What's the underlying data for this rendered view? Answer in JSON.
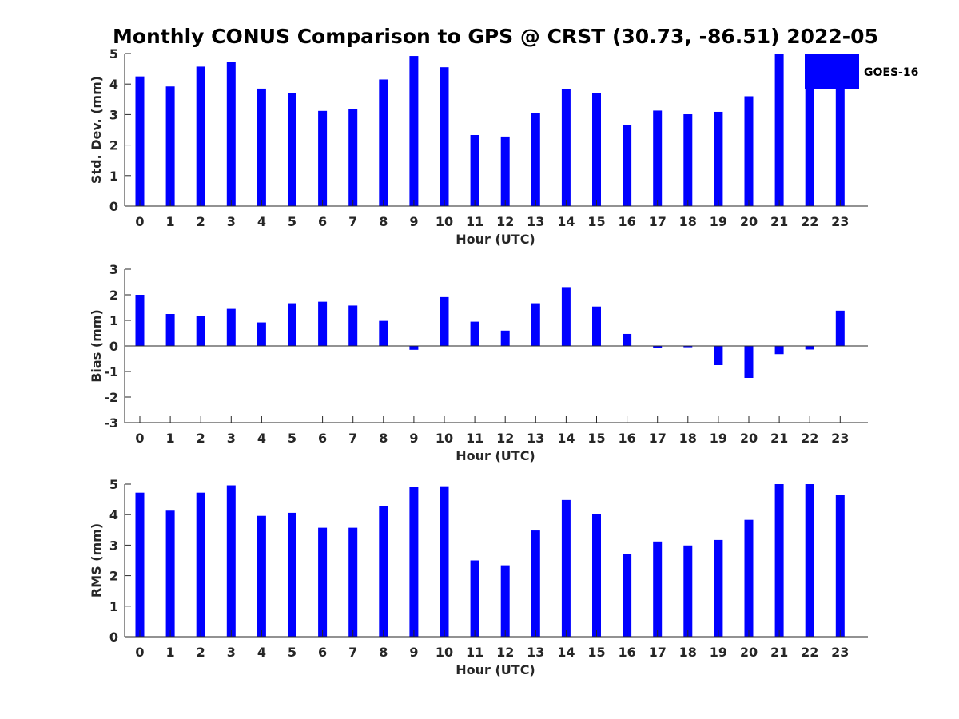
{
  "title": "Monthly CONUS Comparison to GPS @ CRST (30.73, -86.51) 2022-05",
  "legend": {
    "label": "GOES-16",
    "color": "#0000ff"
  },
  "chart_data": [
    {
      "type": "bar",
      "ylabel": "Std. Dev. (mm)",
      "xlabel": "Hour (UTC)",
      "ylim": [
        0,
        5
      ],
      "yticks": [
        0,
        1,
        2,
        3,
        4,
        5
      ],
      "grid": false,
      "legend": "top-right",
      "categories": [
        0,
        1,
        2,
        3,
        4,
        5,
        6,
        7,
        8,
        9,
        10,
        11,
        12,
        13,
        14,
        15,
        16,
        17,
        18,
        19,
        20,
        21,
        22,
        23
      ],
      "series": [
        {
          "name": "GOES-16",
          "color": "#0000ff",
          "values": [
            4.25,
            3.92,
            4.57,
            4.72,
            3.85,
            3.71,
            3.12,
            3.19,
            4.15,
            4.92,
            4.55,
            2.33,
            2.28,
            3.05,
            3.83,
            3.71,
            2.67,
            3.13,
            3.01,
            3.09,
            3.6,
            5.0,
            5.0,
            3.84
          ]
        }
      ]
    },
    {
      "type": "bar",
      "ylabel": "Bias (mm)",
      "xlabel": "Hour (UTC)",
      "ylim": [
        -3,
        3
      ],
      "yticks": [
        -3,
        -2,
        -1,
        0,
        1,
        2,
        3
      ],
      "grid": false,
      "categories": [
        0,
        1,
        2,
        3,
        4,
        5,
        6,
        7,
        8,
        9,
        10,
        11,
        12,
        13,
        14,
        15,
        16,
        17,
        18,
        19,
        20,
        21,
        22,
        23
      ],
      "series": [
        {
          "name": "GOES-16",
          "color": "#0000ff",
          "values": [
            2.0,
            1.25,
            1.18,
            1.45,
            0.92,
            1.67,
            1.73,
            1.58,
            0.98,
            -0.15,
            1.91,
            0.95,
            0.6,
            1.67,
            2.3,
            1.54,
            0.47,
            -0.08,
            -0.05,
            -0.75,
            -1.25,
            -0.32,
            -0.14,
            1.38
          ]
        }
      ]
    },
    {
      "type": "bar",
      "ylabel": "RMS (mm)",
      "xlabel": "Hour (UTC)",
      "ylim": [
        0,
        5
      ],
      "yticks": [
        0,
        1,
        2,
        3,
        4,
        5
      ],
      "grid": false,
      "categories": [
        0,
        1,
        2,
        3,
        4,
        5,
        6,
        7,
        8,
        9,
        10,
        11,
        12,
        13,
        14,
        15,
        16,
        17,
        18,
        19,
        20,
        21,
        22,
        23
      ],
      "series": [
        {
          "name": "GOES-16",
          "color": "#0000ff",
          "values": [
            4.72,
            4.13,
            4.72,
            4.96,
            3.96,
            4.06,
            3.57,
            3.57,
            4.27,
            4.92,
            4.93,
            2.5,
            2.34,
            3.48,
            4.48,
            4.03,
            2.7,
            3.12,
            2.99,
            3.17,
            3.83,
            5.0,
            5.0,
            4.64
          ]
        }
      ]
    }
  ]
}
